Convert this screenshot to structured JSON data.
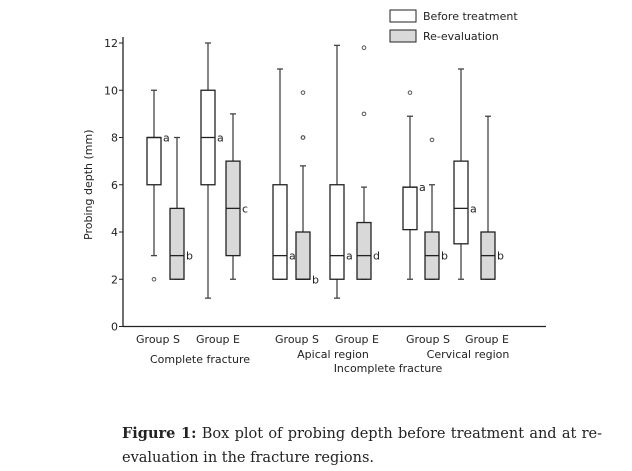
{
  "chart_data": {
    "type": "box",
    "title": "",
    "xlabel": "",
    "ylabel": "Probing depth (mm)",
    "ylim": [
      0,
      12
    ],
    "yticks": [
      0,
      2,
      4,
      6,
      8,
      10,
      12
    ],
    "grid": false,
    "legend": {
      "placement": "top-right",
      "entries": [
        {
          "name": "Before treatment",
          "color": "#ffffff"
        },
        {
          "name": "Re-evaluation",
          "color": "#d9d9d9"
        }
      ]
    },
    "categories": [
      {
        "label": "Group S",
        "region": "Complete fracture"
      },
      {
        "label": "Group E",
        "region": "Complete fracture"
      },
      {
        "label": "Group S",
        "region": "Apical region"
      },
      {
        "label": "Group E",
        "region": "Apical region"
      },
      {
        "label": "Group S",
        "region": "Cervical region"
      },
      {
        "label": "Group E",
        "region": "Cervical region"
      }
    ],
    "region_labels": [
      "Complete fracture",
      "Apical region",
      "Cervical region"
    ],
    "super_label": "Incomplete fracture",
    "boxes": [
      {
        "series": "Before treatment",
        "cat": 0,
        "min": 3,
        "q1": 6,
        "median": 8,
        "q3": 8,
        "max": 10,
        "outliers": [
          2
        ],
        "letter": "a"
      },
      {
        "series": "Re-evaluation",
        "cat": 0,
        "min": 2,
        "q1": 2,
        "median": 3,
        "q3": 5,
        "max": 8,
        "outliers": [],
        "letter": "b"
      },
      {
        "series": "Before treatment",
        "cat": 1,
        "min": 1.2,
        "q1": 6,
        "median": 8,
        "q3": 10,
        "max": 12,
        "outliers": [],
        "letter": "a"
      },
      {
        "series": "Re-evaluation",
        "cat": 1,
        "min": 2,
        "q1": 3,
        "median": 5,
        "q3": 7,
        "max": 9,
        "outliers": [],
        "letter": "c"
      },
      {
        "series": "Before treatment",
        "cat": 2,
        "min": 2,
        "q1": 2,
        "median": 3,
        "q3": 6,
        "max": 10.9,
        "outliers": [],
        "letter": "a"
      },
      {
        "series": "Re-evaluation",
        "cat": 2,
        "min": 2,
        "q1": 2,
        "median": 2,
        "q3": 4,
        "max": 6.8,
        "outliers": [
          9.9,
          8,
          8
        ],
        "letter": "b"
      },
      {
        "series": "Before treatment",
        "cat": 3,
        "min": 1.2,
        "q1": 2,
        "median": 3,
        "q3": 6,
        "max": 11.9,
        "outliers": [],
        "letter": "a"
      },
      {
        "series": "Re-evaluation",
        "cat": 3,
        "min": 2,
        "q1": 2,
        "median": 3,
        "q3": 4.4,
        "max": 5.9,
        "outliers": [
          9,
          11.8
        ],
        "letter": "d"
      },
      {
        "series": "Before treatment",
        "cat": 4,
        "min": 2,
        "q1": 4.1,
        "median": 5.9,
        "q3": 5.9,
        "max": 8.9,
        "outliers": [
          9.9
        ],
        "letter": "a"
      },
      {
        "series": "Re-evaluation",
        "cat": 4,
        "min": 2,
        "q1": 2,
        "median": 3,
        "q3": 4,
        "max": 6,
        "outliers": [
          7.9
        ],
        "letter": "b"
      },
      {
        "series": "Before treatment",
        "cat": 5,
        "min": 2,
        "q1": 3.5,
        "median": 5,
        "q3": 7,
        "max": 10.9,
        "outliers": [],
        "letter": "a"
      },
      {
        "series": "Re-evaluation",
        "cat": 5,
        "min": 2,
        "q1": 2,
        "median": 3,
        "q3": 4,
        "max": 8.9,
        "outliers": [],
        "letter": "b"
      }
    ]
  },
  "caption": {
    "label": "Figure 1:",
    "text": " Box plot of probing depth before treatment and at re-evaluation in the fracture regions."
  }
}
